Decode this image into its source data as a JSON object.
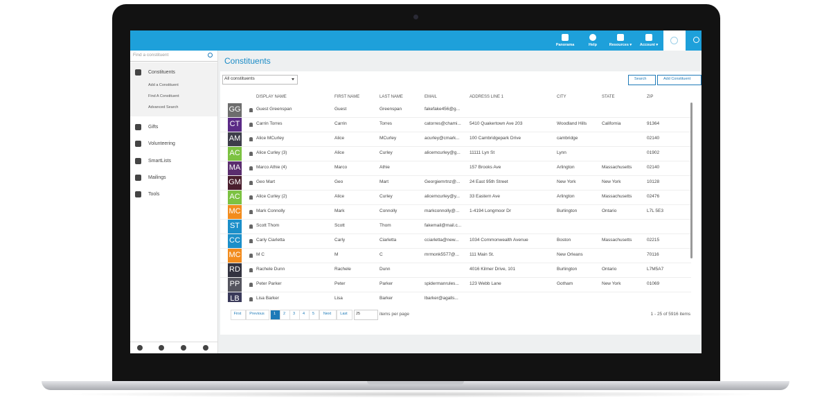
{
  "topnav": [
    {
      "label": "Panorama"
    },
    {
      "label": "Help"
    },
    {
      "label": "Resources ▾"
    },
    {
      "label": "Account ▾"
    }
  ],
  "sidebar": {
    "search_placeholder": "Find a constituent",
    "menu": [
      {
        "label": "Constituents",
        "children": [
          "Add a Constituent",
          "Find A Constituent",
          "Advanced Search"
        ]
      },
      {
        "label": "Gifts"
      },
      {
        "label": "Volunteering"
      },
      {
        "label": "SmartLists"
      },
      {
        "label": "Mailings"
      },
      {
        "label": "Tools"
      }
    ]
  },
  "page": {
    "title": "Constituents",
    "filter": "All constituents",
    "buttons": [
      "Search",
      "Add Constituent"
    ]
  },
  "table": {
    "columns": [
      "DISPLAY NAME",
      "FIRST NAME",
      "LAST NAME",
      "EMAIL",
      "ADDRESS LINE 1",
      "CITY",
      "STATE",
      "ZIP"
    ],
    "rows": [
      {
        "initials": "GG",
        "color": "#6d6d6d",
        "cells": [
          "Guest Greenspan",
          "Guest",
          "Greenspan",
          "fakefake456@g...",
          null,
          null,
          null,
          null
        ]
      },
      {
        "initials": "CT",
        "color": "#5b2a86",
        "cells": [
          "Carrin Torres",
          "Carrin",
          "Torres",
          "catorres@chami...",
          "5410 Quakertown Ave 203",
          "Woodland Hills",
          "California",
          "91364"
        ]
      },
      {
        "initials": "AM",
        "color": "#3d3d4a",
        "cells": [
          "Alice MCurley",
          "Alice",
          "MCurley",
          "acurley@cmark...",
          "100 Cambridgepark Drive",
          "cambridge",
          null,
          "02140"
        ]
      },
      {
        "initials": "AC",
        "color": "#7cc242",
        "cells": [
          "Alice Curley (3)",
          "Alice",
          "Curley",
          "alicemcurley@g...",
          "11111 Lyn St",
          "Lynn",
          null,
          "01902"
        ]
      },
      {
        "initials": "MA",
        "color": "#5a2d6e",
        "cells": [
          "Marco Athie (4)",
          "Marco",
          "Athie",
          null,
          "157 Brooks Ave",
          "Arlington",
          "Massachusetts",
          "02140"
        ]
      },
      {
        "initials": "GM",
        "color": "#4a1f2e",
        "cells": [
          "Geo Mart",
          "Geo",
          "Mart",
          "Georgiemrtnz@...",
          "24 East 95th Street",
          "New York",
          "New York",
          "10128"
        ]
      },
      {
        "initials": "AC",
        "color": "#7cc242",
        "cells": [
          "Alice Curley (2)",
          "Alice",
          "Curley",
          "alicemcurley@y...",
          "33 Eastern Ave",
          "Arlington",
          "Massachusetts",
          "02476"
        ]
      },
      {
        "initials": "MC",
        "color": "#f28c1e",
        "cells": [
          "Mark Connolly",
          "Mark",
          "Connolly",
          "markconnolly@...",
          "1-4194 Longmoor Dr",
          "Burlington",
          "Ontario",
          "L7L 5E3"
        ]
      },
      {
        "initials": "ST",
        "color": "#1b8fc9",
        "cells": [
          "Scott Thom",
          "Scott",
          "Thom",
          "fakemail@mail.c...",
          null,
          null,
          null,
          null
        ]
      },
      {
        "initials": "CC",
        "color": "#1b8fc9",
        "cells": [
          "Carly Ciarletta",
          "Carly",
          "Ciarletta",
          "cciarletta@new...",
          "1034 Commonwealth Avenue",
          "Boston",
          "Massachusetts",
          "02215"
        ]
      },
      {
        "initials": "MC",
        "color": "#f28c1e",
        "cells": [
          "M C",
          "M",
          "C",
          "mrmonk5577@...",
          "111 Main St.",
          "New Orleans",
          null,
          "70116"
        ]
      },
      {
        "initials": "RD",
        "color": "#333340",
        "cells": [
          "Rachele Dunn",
          "Rachele",
          "Dunn",
          null,
          "4016 Kilmer Drive, 101",
          "Burlington",
          "Ontario",
          "L7M5A7"
        ]
      },
      {
        "initials": "PP",
        "color": "#55555f",
        "cells": [
          "Peter Parker",
          "Peter",
          "Parker",
          "spidermanrules...",
          "123 Webb Lane",
          "Gotham",
          "New York",
          "01069"
        ]
      },
      {
        "initials": "LB",
        "color": "#3a3a5a",
        "cells": [
          "Lisa Barker",
          "Lisa",
          "Barker",
          "lbarker@agalls...",
          null,
          null,
          null,
          null
        ]
      }
    ]
  },
  "pagination": {
    "first": "First",
    "previous": "Previous",
    "pages": [
      "1",
      "2",
      "3",
      "4",
      "5"
    ],
    "next": "Next",
    "last": "Last",
    "per_page": "25",
    "per_page_label": "items per page",
    "summary": "1 - 25 of 5916 items"
  }
}
